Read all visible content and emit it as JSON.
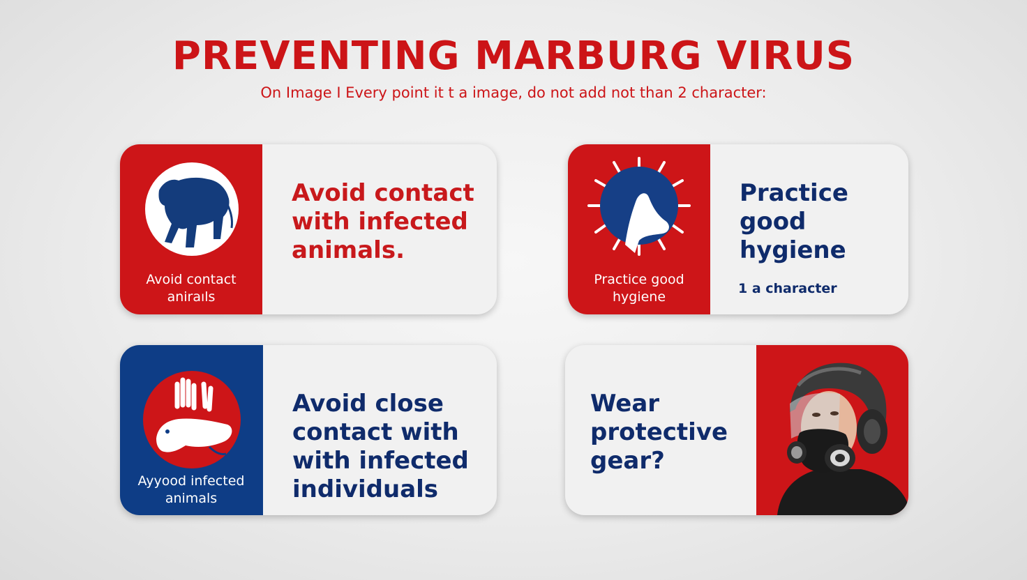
{
  "header": {
    "title": "PREVENTING MARBURG VIRUS",
    "subtitle": "On Image I Every point it t a image, do not add not than 2 character:"
  },
  "cards": [
    {
      "panel_label": "Avoid contact aniraıls",
      "text": "Avoid contact with infected animals.",
      "icon": "animal-silhouette-icon",
      "panel_color": "#cd1518"
    },
    {
      "panel_label": "Practice good hygiene",
      "text": "Practice good hygiene",
      "note": "1 a character",
      "icon": "virus-hand-icon",
      "panel_color": "#cd1518"
    },
    {
      "panel_label": "Ayyood infected animals",
      "text": "Avoid close contact with with infected individuals",
      "icon": "hands-animal-icon",
      "panel_color": "#0e3d86"
    },
    {
      "text": "Wear protective gear?",
      "icon": "gas-mask-person-icon",
      "panel_color": "#cd1518"
    }
  ],
  "colors": {
    "accent_red": "#cc1417",
    "accent_blue": "#0e3d86"
  }
}
